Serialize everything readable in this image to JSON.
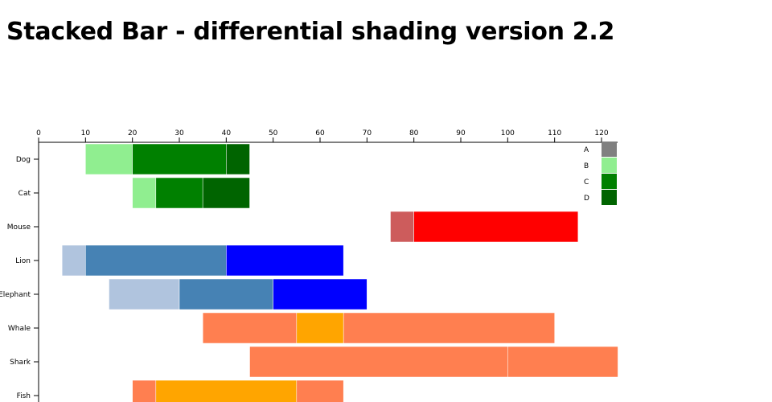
{
  "title": "Stacked Bar - differential shading version 2.2",
  "chart_data": {
    "type": "bar",
    "orientation": "horizontal-floating-stacked",
    "xlim": [
      0,
      120
    ],
    "x_ticks": [
      0,
      10,
      20,
      30,
      40,
      50,
      60,
      70,
      80,
      90,
      100,
      110,
      120
    ],
    "x_axis_position": "top",
    "grid": false,
    "legend_placement": "top-right",
    "legend": [
      {
        "label": "A",
        "color": "#808080"
      },
      {
        "label": "B",
        "color": "#90ee90"
      },
      {
        "label": "C",
        "color": "#008000"
      },
      {
        "label": "D",
        "color": "#006400"
      }
    ],
    "categories": [
      {
        "label": "Dog",
        "segments": [
          {
            "start": 10,
            "end": 20,
            "color": "#90ee90"
          },
          {
            "start": 20,
            "end": 40,
            "color": "#008000"
          },
          {
            "start": 40,
            "end": 45,
            "color": "#006400"
          }
        ]
      },
      {
        "label": "Cat",
        "segments": [
          {
            "start": 20,
            "end": 25,
            "color": "#90ee90"
          },
          {
            "start": 25,
            "end": 35,
            "color": "#008000"
          },
          {
            "start": 35,
            "end": 45,
            "color": "#006400"
          }
        ]
      },
      {
        "label": "Mouse",
        "segments": [
          {
            "start": 75,
            "end": 80,
            "color": "#cd5c5c"
          },
          {
            "start": 80,
            "end": 115,
            "color": "#ff0000"
          }
        ]
      },
      {
        "label": "Lion",
        "segments": [
          {
            "start": 5,
            "end": 10,
            "color": "#b0c4de"
          },
          {
            "start": 10,
            "end": 40,
            "color": "#4682b4"
          },
          {
            "start": 40,
            "end": 65,
            "color": "#0000ff"
          }
        ]
      },
      {
        "label": "Elephant",
        "segments": [
          {
            "start": 15,
            "end": 30,
            "color": "#b0c4de"
          },
          {
            "start": 30,
            "end": 50,
            "color": "#4682b4"
          },
          {
            "start": 50,
            "end": 70,
            "color": "#0000ff"
          }
        ]
      },
      {
        "label": "Whale",
        "segments": [
          {
            "start": 35,
            "end": 55,
            "color": "#ff7f50"
          },
          {
            "start": 55,
            "end": 65,
            "color": "#ffa500"
          },
          {
            "start": 65,
            "end": 110,
            "color": "#ff7f50"
          }
        ]
      },
      {
        "label": "Shark",
        "segments": [
          {
            "start": 45,
            "end": 100,
            "color": "#ff7f50"
          },
          {
            "start": 100,
            "end": 123.5,
            "color": "#ff7f50"
          }
        ]
      },
      {
        "label": "Fish",
        "segments": [
          {
            "start": 20,
            "end": 25,
            "color": "#ff7f50"
          },
          {
            "start": 25,
            "end": 55,
            "color": "#ffa500"
          },
          {
            "start": 55,
            "end": 65,
            "color": "#ff7f50"
          }
        ]
      }
    ]
  }
}
